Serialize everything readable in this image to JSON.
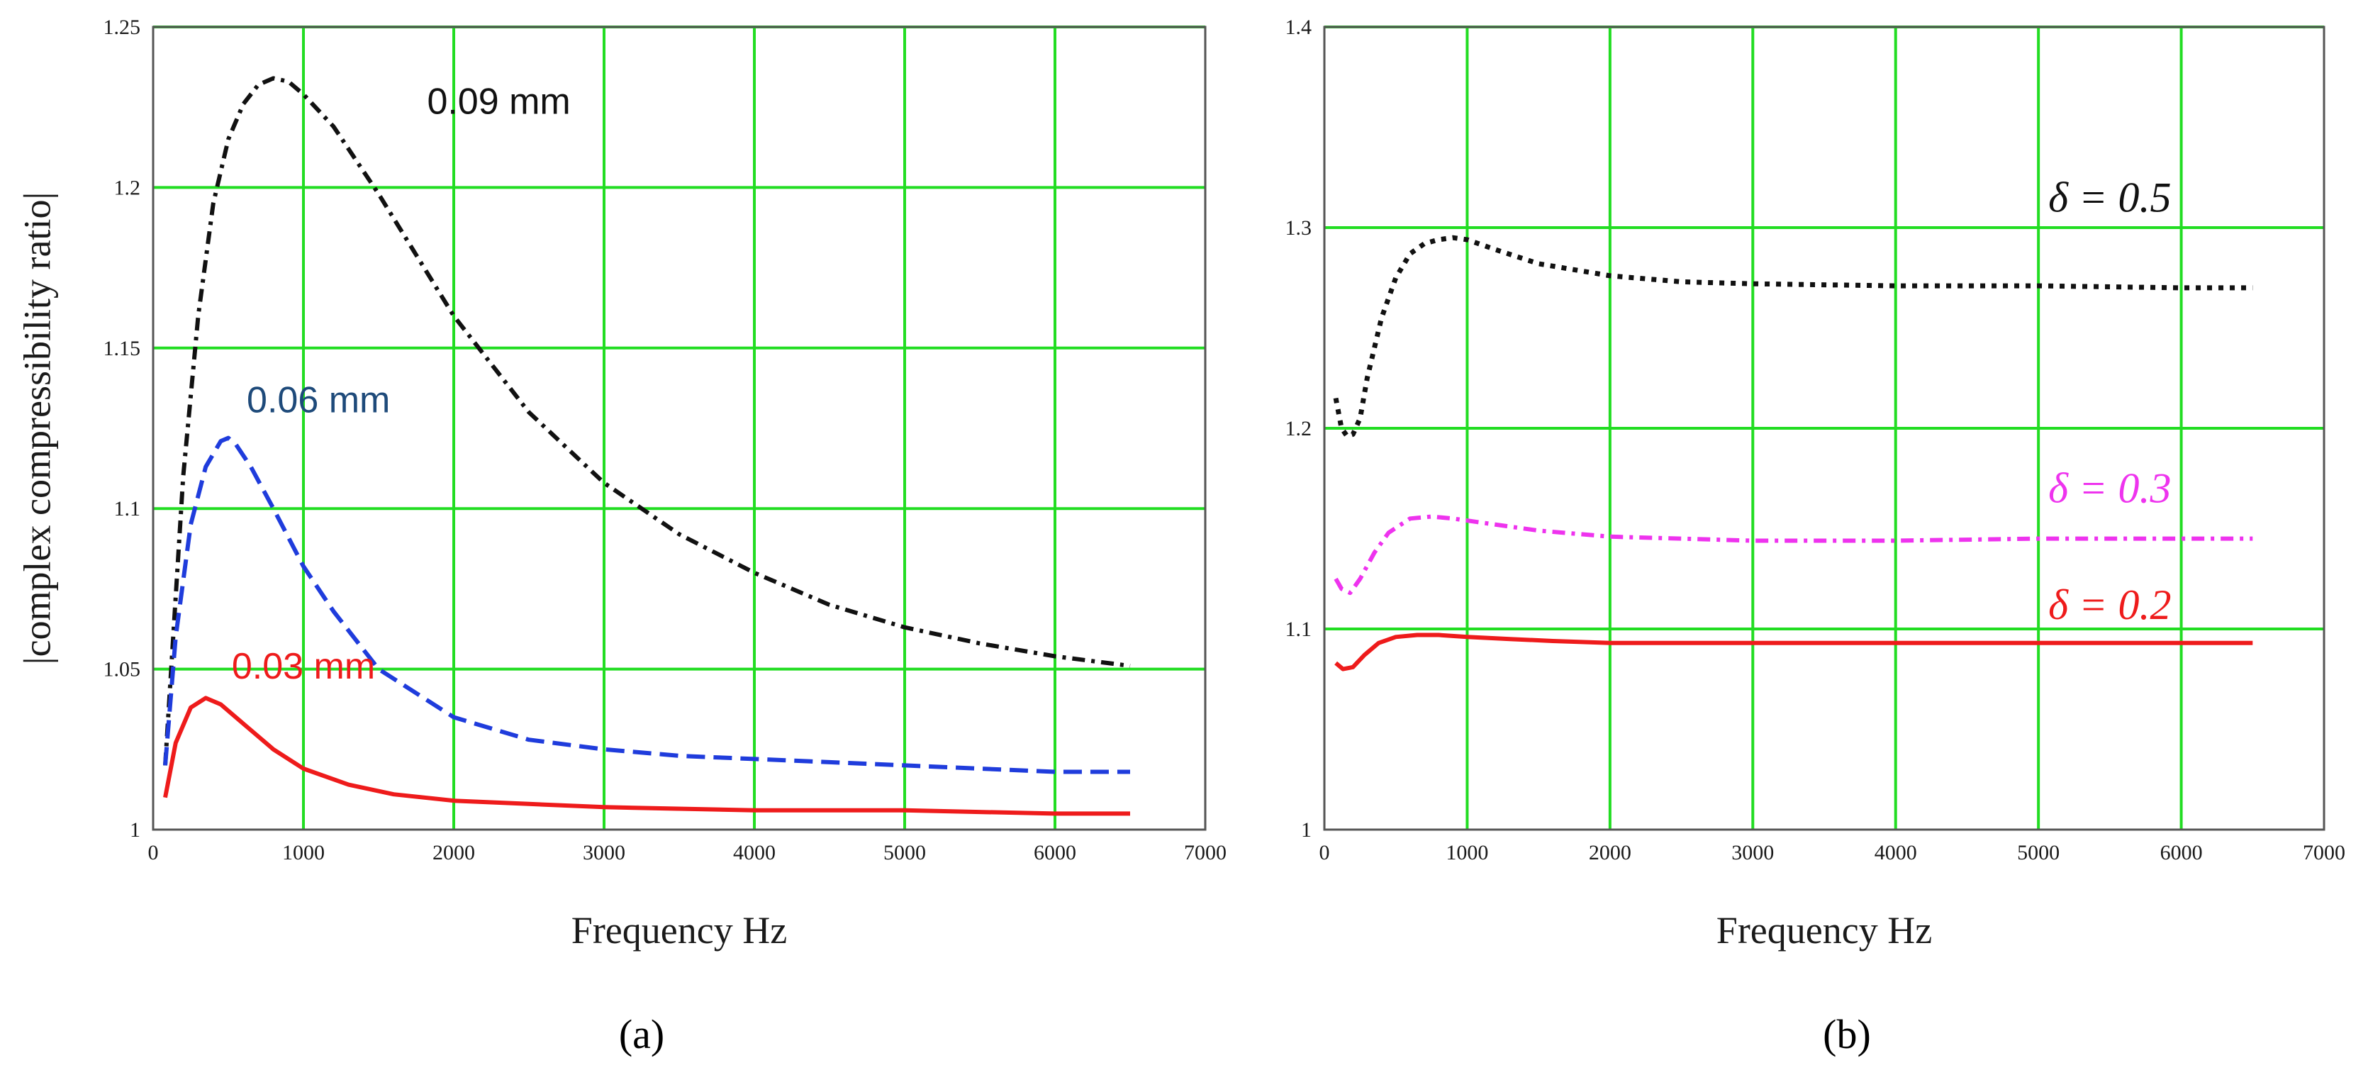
{
  "colors": {
    "grid": "#22dd22",
    "black": "#111111",
    "blue": "#1f3cdc",
    "navy": "#1e4a7a",
    "red": "#ee1b1b",
    "magenta": "#ee33ee"
  },
  "chart_data": [
    {
      "id": "a",
      "type": "line",
      "panel_label": "(a)",
      "xlabel": "Frequency Hz",
      "ylabel": "|complex compressibility ratio|",
      "xlim": [
        0,
        7000
      ],
      "ylim": [
        1,
        1.25
      ],
      "xticks": [
        "0",
        "1000",
        "2000",
        "3000",
        "4000",
        "5000",
        "6000",
        "7000"
      ],
      "yticks": [
        "1",
        "1.05",
        "1.1",
        "1.15",
        "1.2",
        "1.25"
      ],
      "grid": true,
      "series": [
        {
          "name": "0.09 mm",
          "color": "#111111",
          "style": "dashdot",
          "x": [
            80,
            200,
            300,
            400,
            500,
            600,
            700,
            800,
            900,
            1000,
            1200,
            1500,
            2000,
            2500,
            3000,
            3500,
            4000,
            4500,
            5000,
            5500,
            6000,
            6500
          ],
          "y": [
            1.02,
            1.11,
            1.16,
            1.195,
            1.215,
            1.226,
            1.232,
            1.234,
            1.233,
            1.229,
            1.219,
            1.198,
            1.16,
            1.13,
            1.108,
            1.092,
            1.08,
            1.07,
            1.063,
            1.058,
            1.054,
            1.051
          ]
        },
        {
          "name": "0.06 mm",
          "color": "#1f3cdc",
          "style": "dashed",
          "x": [
            80,
            150,
            250,
            350,
            450,
            500,
            550,
            650,
            800,
            1000,
            1200,
            1500,
            2000,
            2500,
            3000,
            3500,
            4000,
            4500,
            5000,
            5500,
            6000,
            6500
          ],
          "y": [
            1.02,
            1.06,
            1.095,
            1.113,
            1.121,
            1.122,
            1.12,
            1.113,
            1.1,
            1.082,
            1.068,
            1.05,
            1.035,
            1.028,
            1.025,
            1.023,
            1.022,
            1.021,
            1.02,
            1.019,
            1.018,
            1.018
          ]
        },
        {
          "name": "0.03 mm",
          "color": "#ee1b1b",
          "style": "solid",
          "x": [
            80,
            150,
            250,
            350,
            450,
            600,
            800,
            1000,
            1300,
            1600,
            2000,
            2500,
            3000,
            4000,
            5000,
            6000,
            6500
          ],
          "y": [
            1.01,
            1.027,
            1.038,
            1.041,
            1.039,
            1.033,
            1.025,
            1.019,
            1.014,
            1.011,
            1.009,
            1.008,
            1.007,
            1.006,
            1.006,
            1.005,
            1.005
          ]
        }
      ],
      "annotations": [
        {
          "text": "0.09 mm",
          "x": 2300,
          "y": 1.223,
          "color": "#111111"
        },
        {
          "text": "0.06 mm",
          "x": 1100,
          "y": 1.13,
          "color": "#1e4a7a"
        },
        {
          "text": "0.03 mm",
          "x": 1000,
          "y": 1.047,
          "color": "#ee1b1b"
        }
      ]
    },
    {
      "id": "b",
      "type": "line",
      "panel_label": "(b)",
      "xlabel": "Frequency Hz",
      "ylabel": "",
      "xlim": [
        0,
        7000
      ],
      "ylim": [
        1,
        1.4
      ],
      "xticks": [
        "0",
        "1000",
        "2000",
        "3000",
        "4000",
        "5000",
        "6000",
        "7000"
      ],
      "yticks": [
        "1",
        "1.1",
        "1.2",
        "1.3",
        "1.4"
      ],
      "grid": true,
      "series": [
        {
          "name": "δ = 0.5",
          "color": "#111111",
          "style": "dotted",
          "x": [
            80,
            120,
            160,
            200,
            250,
            300,
            400,
            500,
            600,
            700,
            800,
            900,
            1000,
            1200,
            1500,
            2000,
            2500,
            3000,
            4000,
            5000,
            6000,
            6500
          ],
          "y": [
            1.215,
            1.2,
            1.196,
            1.197,
            1.205,
            1.225,
            1.255,
            1.275,
            1.287,
            1.292,
            1.294,
            1.295,
            1.294,
            1.289,
            1.282,
            1.276,
            1.273,
            1.272,
            1.271,
            1.271,
            1.27,
            1.27
          ]
        },
        {
          "name": "δ = 0.3",
          "color": "#ee33ee",
          "style": "dashdot",
          "x": [
            80,
            120,
            180,
            250,
            350,
            450,
            600,
            750,
            900,
            1100,
            1500,
            2000,
            3000,
            4000,
            5000,
            6000,
            6500
          ],
          "y": [
            1.125,
            1.12,
            1.118,
            1.125,
            1.138,
            1.148,
            1.155,
            1.156,
            1.155,
            1.153,
            1.149,
            1.146,
            1.144,
            1.144,
            1.145,
            1.145,
            1.145
          ]
        },
        {
          "name": "δ = 0.2",
          "color": "#ee1b1b",
          "style": "solid",
          "x": [
            80,
            130,
            200,
            280,
            380,
            500,
            650,
            800,
            1000,
            1300,
            1600,
            2000,
            3000,
            4000,
            5000,
            6000,
            6500
          ],
          "y": [
            1.083,
            1.08,
            1.081,
            1.087,
            1.093,
            1.096,
            1.097,
            1.097,
            1.096,
            1.095,
            1.094,
            1.093,
            1.093,
            1.093,
            1.093,
            1.093,
            1.093
          ]
        }
      ],
      "annotations": [
        {
          "text": "δ = 0.5",
          "x": 5500,
          "y": 1.308,
          "color": "#111111"
        },
        {
          "text": "δ = 0.3",
          "x": 5500,
          "y": 1.163,
          "color": "#ee33ee"
        },
        {
          "text": "δ = 0.2",
          "x": 5500,
          "y": 1.105,
          "color": "#ee1b1b"
        }
      ]
    }
  ]
}
